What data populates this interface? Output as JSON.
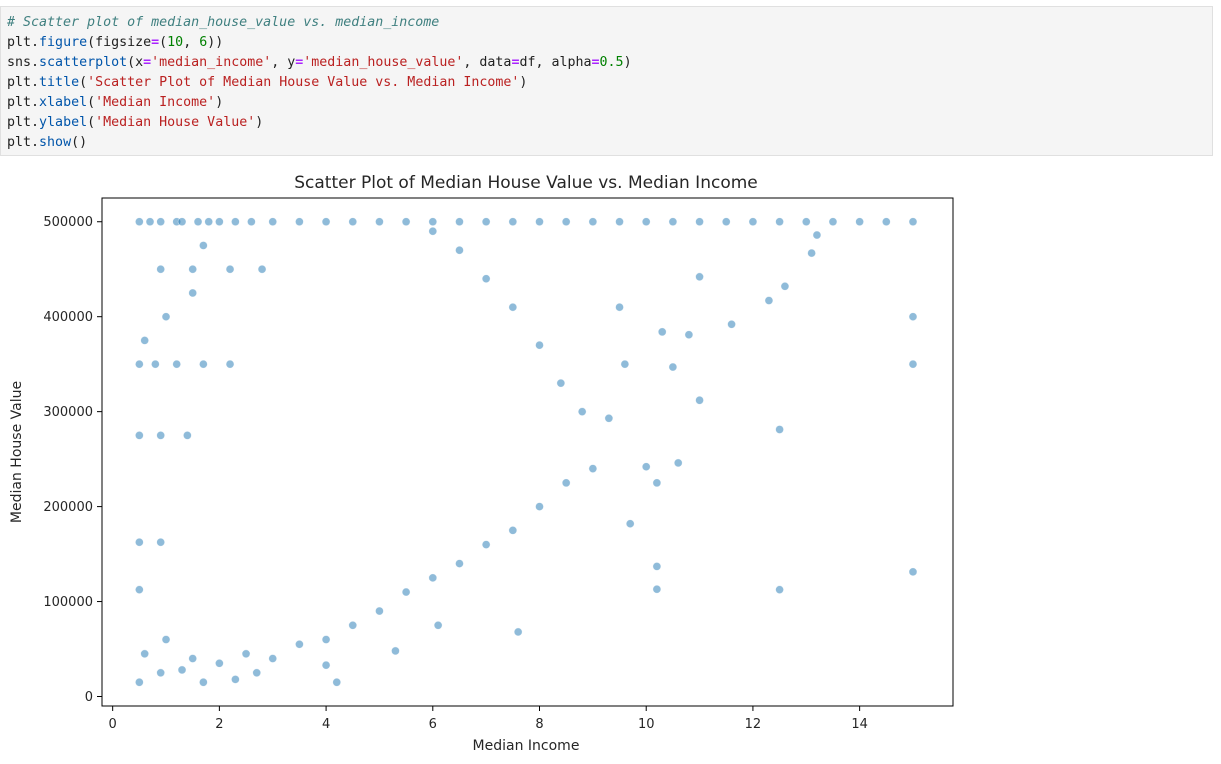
{
  "code_cell": {
    "lines": [
      [
        {
          "t": "# Scatter plot of median_house_value vs. median_income",
          "c": "cm"
        }
      ],
      [
        {
          "t": "plt",
          "c": "obj"
        },
        {
          "t": ".",
          "c": "obj"
        },
        {
          "t": "figure",
          "c": "fn"
        },
        {
          "t": "(figsize",
          "c": "obj"
        },
        {
          "t": "=",
          "c": "op"
        },
        {
          "t": "(",
          "c": "obj"
        },
        {
          "t": "10",
          "c": "num"
        },
        {
          "t": ", ",
          "c": "obj"
        },
        {
          "t": "6",
          "c": "num"
        },
        {
          "t": "))",
          "c": "obj"
        }
      ],
      [
        {
          "t": "sns",
          "c": "obj"
        },
        {
          "t": ".",
          "c": "obj"
        },
        {
          "t": "scatterplot",
          "c": "fn"
        },
        {
          "t": "(x",
          "c": "obj"
        },
        {
          "t": "=",
          "c": "op"
        },
        {
          "t": "'median_income'",
          "c": "str"
        },
        {
          "t": ", y",
          "c": "obj"
        },
        {
          "t": "=",
          "c": "op"
        },
        {
          "t": "'median_house_value'",
          "c": "str"
        },
        {
          "t": ", data",
          "c": "obj"
        },
        {
          "t": "=",
          "c": "op"
        },
        {
          "t": "df, alpha",
          "c": "obj"
        },
        {
          "t": "=",
          "c": "op"
        },
        {
          "t": "0.5",
          "c": "num"
        },
        {
          "t": ")",
          "c": "obj"
        }
      ],
      [
        {
          "t": "plt",
          "c": "obj"
        },
        {
          "t": ".",
          "c": "obj"
        },
        {
          "t": "title",
          "c": "fn"
        },
        {
          "t": "(",
          "c": "obj"
        },
        {
          "t": "'Scatter Plot of Median House Value vs. Median Income'",
          "c": "str"
        },
        {
          "t": ")",
          "c": "obj"
        }
      ],
      [
        {
          "t": "plt",
          "c": "obj"
        },
        {
          "t": ".",
          "c": "obj"
        },
        {
          "t": "xlabel",
          "c": "fn"
        },
        {
          "t": "(",
          "c": "obj"
        },
        {
          "t": "'Median Income'",
          "c": "str"
        },
        {
          "t": ")",
          "c": "obj"
        }
      ],
      [
        {
          "t": "plt",
          "c": "obj"
        },
        {
          "t": ".",
          "c": "obj"
        },
        {
          "t": "ylabel",
          "c": "fn"
        },
        {
          "t": "(",
          "c": "obj"
        },
        {
          "t": "'Median House Value'",
          "c": "str"
        },
        {
          "t": ")",
          "c": "obj"
        }
      ],
      [
        {
          "t": "plt",
          "c": "obj"
        },
        {
          "t": ".",
          "c": "obj"
        },
        {
          "t": "show",
          "c": "fn"
        },
        {
          "t": "()",
          "c": "obj"
        }
      ]
    ]
  },
  "chart_data": {
    "type": "scatter",
    "title": "Scatter Plot of Median House Value vs. Median Income",
    "xlabel": "Median Income",
    "ylabel": "Median House Value",
    "xlim": [
      -0.2,
      15.75
    ],
    "ylim": [
      -10000,
      525000
    ],
    "xticks": [
      0,
      2,
      4,
      6,
      8,
      10,
      12,
      14
    ],
    "yticks": [
      0,
      100000,
      200000,
      300000,
      400000,
      500000
    ],
    "marker_color": "#1f77b4",
    "alpha": 0.5,
    "series": [
      {
        "values_note_free": true,
        "points": [
          [
            0.5,
            500001
          ],
          [
            0.7,
            500001
          ],
          [
            0.9,
            500001
          ],
          [
            1.2,
            500001
          ],
          [
            1.3,
            500001
          ],
          [
            1.6,
            500001
          ],
          [
            1.8,
            500001
          ],
          [
            2.0,
            500001
          ],
          [
            2.3,
            500001
          ],
          [
            2.6,
            500001
          ],
          [
            3.0,
            500001
          ],
          [
            3.5,
            500001
          ],
          [
            4.0,
            500001
          ],
          [
            4.5,
            500001
          ],
          [
            5.0,
            500001
          ],
          [
            5.5,
            500001
          ],
          [
            6.0,
            500001
          ],
          [
            6.5,
            500001
          ],
          [
            7.0,
            500001
          ],
          [
            7.5,
            500001
          ],
          [
            8.0,
            500001
          ],
          [
            8.5,
            500001
          ],
          [
            9.0,
            500001
          ],
          [
            9.5,
            500001
          ],
          [
            10.0,
            500001
          ],
          [
            10.5,
            500001
          ],
          [
            11.0,
            500001
          ],
          [
            11.5,
            500001
          ],
          [
            12.0,
            500001
          ],
          [
            12.5,
            500001
          ],
          [
            13.0,
            500001
          ],
          [
            13.5,
            500001
          ],
          [
            14.0,
            500001
          ],
          [
            14.5,
            500001
          ],
          [
            15.0,
            500001
          ],
          [
            0.9,
            450000
          ],
          [
            1.5,
            450000
          ],
          [
            2.2,
            450000
          ],
          [
            2.8,
            450000
          ],
          [
            0.5,
            350000
          ],
          [
            0.8,
            350000
          ],
          [
            1.2,
            350000
          ],
          [
            1.7,
            350000
          ],
          [
            2.2,
            350000
          ],
          [
            0.5,
            275000
          ],
          [
            0.9,
            275000
          ],
          [
            1.4,
            275000
          ],
          [
            0.5,
            162500
          ],
          [
            0.9,
            162500
          ],
          [
            0.5,
            112500
          ],
          [
            0.6,
            375000
          ],
          [
            1.0,
            400000
          ],
          [
            1.5,
            425000
          ],
          [
            1.7,
            475000
          ],
          [
            15.0,
            400000
          ],
          [
            15.0,
            350000
          ],
          [
            15.0,
            131300
          ],
          [
            12.5,
            112500
          ],
          [
            12.5,
            281200
          ],
          [
            12.6,
            432000
          ],
          [
            12.3,
            417000
          ],
          [
            13.1,
            467000
          ],
          [
            13.2,
            486000
          ],
          [
            11.6,
            392000
          ],
          [
            11.0,
            312000
          ],
          [
            11.0,
            442000
          ],
          [
            10.6,
            246000
          ],
          [
            10.2,
            225000
          ],
          [
            10.2,
            137000
          ],
          [
            10.2,
            113000
          ],
          [
            10.0,
            242000
          ],
          [
            9.7,
            182000
          ],
          [
            9.6,
            350000
          ],
          [
            9.5,
            410000
          ],
          [
            9.3,
            293000
          ],
          [
            10.5,
            347000
          ],
          [
            10.8,
            381000
          ],
          [
            10.3,
            384000
          ],
          [
            7.6,
            68000
          ],
          [
            5.3,
            48000
          ],
          [
            4.2,
            15000
          ],
          [
            6.1,
            75000
          ],
          [
            4.0,
            33000
          ],
          [
            0.5,
            15000
          ],
          [
            0.9,
            25000
          ],
          [
            1.3,
            28000
          ],
          [
            1.7,
            15000
          ],
          [
            2.3,
            18000
          ],
          [
            2.7,
            25000
          ],
          [
            0.6,
            45000
          ],
          [
            1.0,
            60000
          ],
          [
            1.5,
            40000
          ],
          [
            2.0,
            35000
          ],
          [
            2.5,
            45000
          ],
          [
            3.0,
            40000
          ],
          [
            3.5,
            55000
          ],
          [
            4.0,
            60000
          ],
          [
            4.5,
            75000
          ],
          [
            5.0,
            90000
          ],
          [
            5.5,
            110000
          ],
          [
            6.0,
            125000
          ],
          [
            6.5,
            140000
          ],
          [
            7.0,
            160000
          ],
          [
            7.5,
            175000
          ],
          [
            8.0,
            200000
          ],
          [
            8.5,
            225000
          ],
          [
            9.0,
            240000
          ],
          [
            8.8,
            300000
          ],
          [
            8.4,
            330000
          ],
          [
            8.0,
            370000
          ],
          [
            7.5,
            410000
          ],
          [
            7.0,
            440000
          ],
          [
            6.5,
            470000
          ],
          [
            6.0,
            490000
          ]
        ]
      }
    ]
  }
}
